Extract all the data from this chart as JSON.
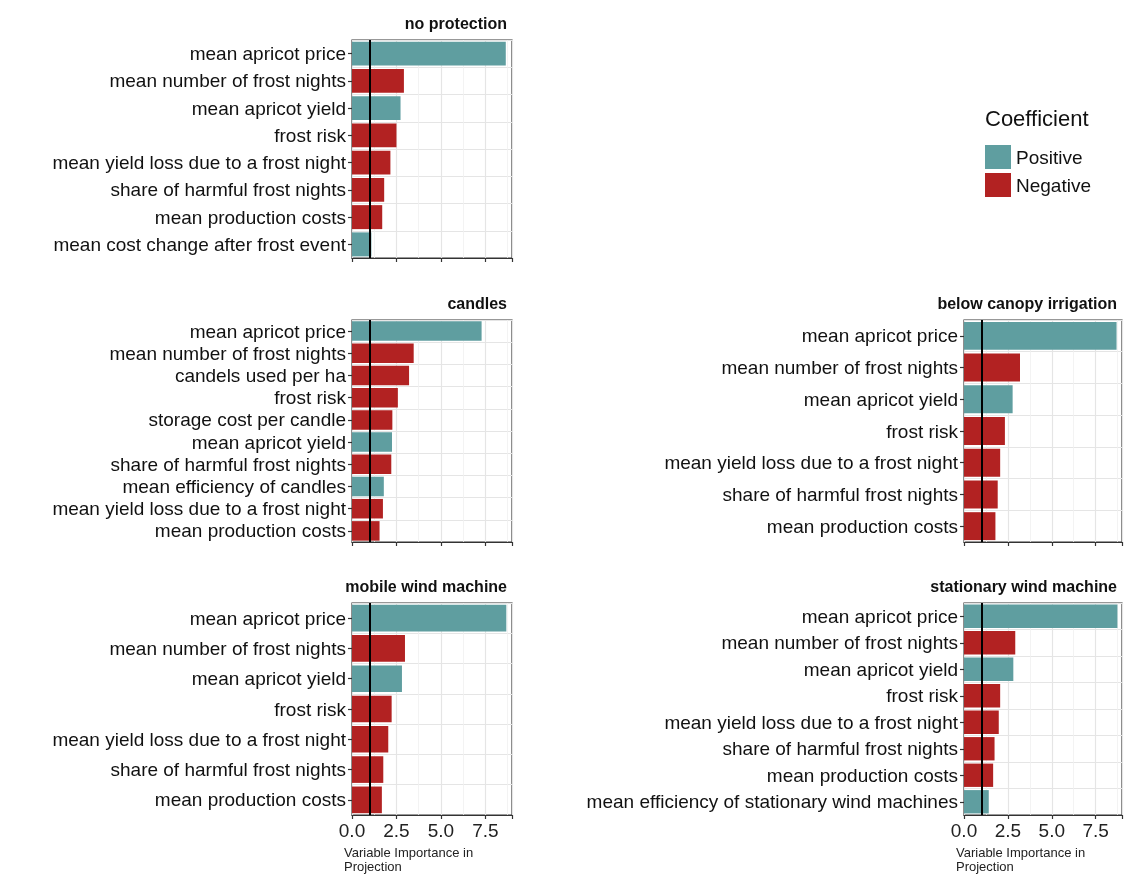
{
  "chart_data": [
    {
      "type": "bar",
      "orientation": "horizontal",
      "title": "no protection",
      "legend_title": "Coefficient",
      "legend": "right",
      "grid": true,
      "tick_labels": "y",
      "categories": [
        "mean apricot price",
        "mean number of frost nights",
        "mean apricot yield",
        "frost risk",
        "mean yield loss due to a frost night",
        "share of harmful frost nights",
        "mean production costs",
        "mean cost change after frost event"
      ],
      "series": [
        {
          "name": "Positive",
          "color": "#5f9ea0",
          "values": [
            8.65,
            null,
            2.73,
            null,
            null,
            null,
            null,
            1.09
          ]
        },
        {
          "name": "Negative",
          "color": "#b22222",
          "values": [
            null,
            2.92,
            null,
            2.5,
            2.16,
            1.81,
            1.7,
            null
          ]
        }
      ],
      "xlim": [
        0,
        9
      ],
      "xticks": [
        {
          "value": 0,
          "label": "0.0"
        },
        {
          "value": 2.5,
          "label": "2.5"
        },
        {
          "value": 5,
          "label": "5.0"
        },
        {
          "value": 7.5,
          "label": "7.5"
        }
      ],
      "ref_lines": [
        {
          "axis": "x",
          "value": 1,
          "color": "#000000"
        }
      ]
    },
    {
      "type": "bar",
      "orientation": "horizontal",
      "title": "candles",
      "legend": false,
      "grid": true,
      "tick_labels": "y",
      "categories": [
        "mean apricot price",
        "mean number of frost nights",
        "candels used per ha",
        "frost risk",
        "storage cost per candle",
        "mean apricot yield",
        "share of harmful frost nights",
        "mean efficiency of candles",
        "mean yield loss due to a frost night",
        "mean production costs"
      ],
      "series": [
        {
          "color": "#5f9ea0",
          "values": [
            7.29,
            null,
            null,
            null,
            null,
            2.25,
            null,
            1.79,
            null,
            null
          ]
        },
        {
          "color": "#b22222",
          "values": [
            null,
            3.47,
            3.21,
            2.58,
            2.27,
            null,
            2.21,
            null,
            1.74,
            1.55
          ]
        }
      ],
      "xlim": [
        0,
        9
      ],
      "xticks": [
        {
          "value": 0,
          "label": "0.0"
        },
        {
          "value": 2.5,
          "label": "2.5"
        },
        {
          "value": 5,
          "label": "5.0"
        },
        {
          "value": 7.5,
          "label": "7.5"
        }
      ],
      "ref_lines": [
        {
          "axis": "x",
          "value": 1,
          "color": "#000000"
        }
      ]
    },
    {
      "type": "bar",
      "orientation": "horizontal",
      "title": "below canopy irrigation",
      "legend": false,
      "grid": true,
      "tick_labels": "y",
      "categories": [
        "mean apricot price",
        "mean number of frost nights",
        "mean apricot yield",
        "frost risk",
        "mean yield loss due to a frost night",
        "share of harmful frost nights",
        "mean production costs"
      ],
      "series": [
        {
          "color": "#5f9ea0",
          "values": [
            8.69,
            null,
            2.77,
            null,
            null,
            null,
            null
          ]
        },
        {
          "color": "#b22222",
          "values": [
            null,
            3.19,
            null,
            2.33,
            2.06,
            1.92,
            1.79
          ]
        }
      ],
      "xlim": [
        0,
        9
      ],
      "xticks": [
        {
          "value": 0,
          "label": "0.0"
        },
        {
          "value": 2.5,
          "label": "2.5"
        },
        {
          "value": 5,
          "label": "5.0"
        },
        {
          "value": 7.5,
          "label": "7.5"
        }
      ],
      "ref_lines": [
        {
          "axis": "x",
          "value": 1,
          "color": "#000000"
        }
      ]
    },
    {
      "type": "bar",
      "orientation": "horizontal",
      "title": "mobile wind machine",
      "legend": false,
      "grid": true,
      "xlabel": "Variable Importance in Projection",
      "categories": [
        "mean apricot price",
        "mean number of frost nights",
        "mean apricot yield",
        "frost risk",
        "mean yield loss due to a frost night",
        "share of harmful frost nights",
        "mean production costs"
      ],
      "series": [
        {
          "color": "#5f9ea0",
          "values": [
            8.68,
            null,
            2.81,
            null,
            null,
            null,
            null
          ]
        },
        {
          "color": "#b22222",
          "values": [
            null,
            2.98,
            null,
            2.23,
            2.04,
            1.76,
            1.68
          ]
        }
      ],
      "xlim": [
        0,
        9
      ],
      "xticks": [
        {
          "value": 0,
          "label": "0.0"
        },
        {
          "value": 2.5,
          "label": "2.5"
        },
        {
          "value": 5,
          "label": "5.0"
        },
        {
          "value": 7.5,
          "label": "7.5"
        }
      ],
      "ref_lines": [
        {
          "axis": "x",
          "value": 1,
          "color": "#000000"
        }
      ]
    },
    {
      "type": "bar",
      "orientation": "horizontal",
      "title": "stationary wind machine",
      "legend": false,
      "grid": true,
      "xlabel": "Variable Importance in Projection",
      "categories": [
        "mean apricot price",
        "mean number of frost nights",
        "mean apricot yield",
        "frost risk",
        "mean yield loss due to a frost night",
        "share of harmful frost nights",
        "mean production costs",
        "mean efficiency of stationary wind machines"
      ],
      "series": [
        {
          "color": "#5f9ea0",
          "values": [
            8.74,
            null,
            2.81,
            null,
            null,
            null,
            null,
            1.41
          ]
        },
        {
          "color": "#b22222",
          "values": [
            null,
            2.92,
            null,
            2.06,
            1.98,
            1.74,
            1.66,
            null
          ]
        }
      ],
      "xlim": [
        0,
        9
      ],
      "xticks": [
        {
          "value": 0,
          "label": "0.0"
        },
        {
          "value": 2.5,
          "label": "2.5"
        },
        {
          "value": 5,
          "label": "5.0"
        },
        {
          "value": 7.5,
          "label": "7.5"
        }
      ],
      "ref_lines": [
        {
          "axis": "x",
          "value": 1,
          "color": "#000000"
        }
      ]
    }
  ]
}
